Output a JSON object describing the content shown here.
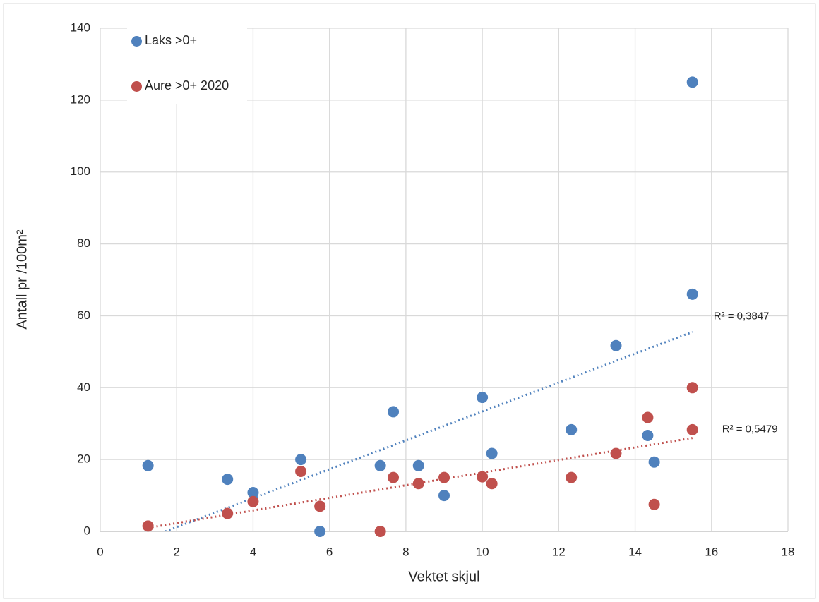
{
  "chart_data": {
    "type": "scatter",
    "xlabel": "Vektet skjul",
    "ylabel": "Antall pr /100m²",
    "xlim": [
      0,
      18
    ],
    "xticks": [
      0,
      2,
      4,
      6,
      8,
      10,
      12,
      14,
      16,
      18
    ],
    "ylim": [
      0,
      140
    ],
    "yticks": [
      0,
      20,
      40,
      60,
      80,
      100,
      120,
      140
    ],
    "grid": true,
    "legend": "top-left",
    "series": [
      {
        "name": "Laks >0+",
        "color": "#4f81bd",
        "x": [
          1.25,
          3.33,
          4,
          5.25,
          5.75,
          7.33,
          7.67,
          8.33,
          9,
          10,
          10.25,
          12.33,
          13.5,
          14.33,
          14.5,
          15.5,
          15.5
        ],
        "values": [
          18.3,
          14.5,
          10.8,
          20,
          0,
          18.3,
          33.3,
          18.3,
          10,
          37.3,
          21.7,
          28.3,
          51.7,
          26.7,
          19.3,
          125,
          66
        ]
      },
      {
        "name": "Aure >0+ 2020",
        "color": "#c0504d",
        "x": [
          1.25,
          3.33,
          4,
          5.25,
          5.75,
          7.33,
          7.67,
          8.33,
          9,
          10,
          10.25,
          12.33,
          13.5,
          14.33,
          14.5,
          15.5,
          15.5
        ],
        "values": [
          1.5,
          5,
          8.3,
          16.7,
          7,
          0,
          15,
          13.3,
          15,
          15.2,
          13.3,
          15,
          21.7,
          31.7,
          7.5,
          40,
          28.3
        ]
      }
    ],
    "trendlines": [
      {
        "color": "#4f81bd",
        "x": [
          1.7,
          15.5
        ],
        "y": [
          0,
          55.5
        ],
        "label": "R² = 0,3847"
      },
      {
        "color": "#c0504d",
        "x": [
          1.25,
          15.5
        ],
        "y": [
          1,
          26
        ],
        "label": "R² = 0,5479"
      }
    ]
  }
}
